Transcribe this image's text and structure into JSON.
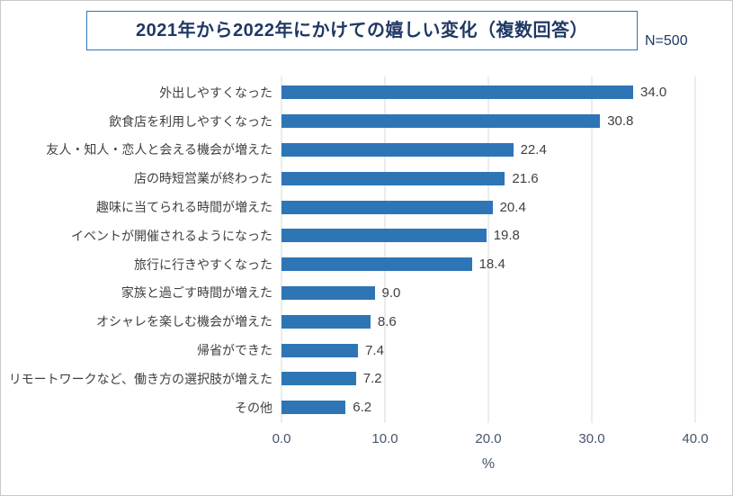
{
  "header": {
    "title": "2021年から2022年にかけての嬉しい変化（複数回答）",
    "sample_size_label": "N=500"
  },
  "chart_data": {
    "type": "bar",
    "orientation": "horizontal",
    "title": "2021年から2022年にかけての嬉しい変化（複数回答）",
    "sample_size_label": "N=500",
    "categories": [
      "外出しやすくなった",
      "飲食店を利用しやすくなった",
      "友人・知人・恋人と会える機会が増えた",
      "店の時短営業が終わった",
      "趣味に当てられる時間が増えた",
      "イベントが開催されるようになった",
      "旅行に行きやすくなった",
      "家族と過ごす時間が増えた",
      "オシャレを楽しむ機会が増えた",
      "帰省ができた",
      "リモートワークなど、働き方の選択肢が増えた",
      "その他"
    ],
    "values": [
      34.0,
      30.8,
      22.4,
      21.6,
      20.4,
      19.8,
      18.4,
      9.0,
      8.6,
      7.4,
      7.2,
      6.2
    ],
    "xlabel": "%",
    "xlim": [
      0,
      40
    ],
    "xticks": [
      0,
      10,
      20,
      30,
      40
    ],
    "xtick_labels": [
      "0.0",
      "10.0",
      "20.0",
      "30.0",
      "40.0"
    ],
    "bar_color": "#2E75B6",
    "grid": true,
    "legend": false
  }
}
